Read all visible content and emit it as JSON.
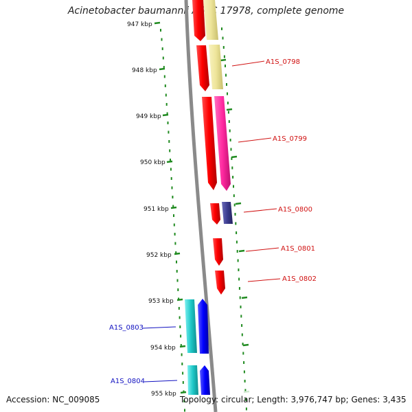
{
  "title": "Acinetobacter baumannii ATCC 17978, complete genome",
  "accession": "Accession: NC_009085",
  "summary": "Topology: circular; Length: 3,976,747 bp; Genes: 3,435",
  "ticks": [
    "947 kbp",
    "948 kbp",
    "949 kbp",
    "950 kbp",
    "951 kbp",
    "952 kbp",
    "953 kbp",
    "954 kbp",
    "955 kbp"
  ],
  "genes": [
    {
      "label": "A1S_0798",
      "color": "#d01010"
    },
    {
      "label": "A1S_0799",
      "color": "#d01010"
    },
    {
      "label": "A1S_0800",
      "color": "#d01010"
    },
    {
      "label": "A1S_0801",
      "color": "#d01010"
    },
    {
      "label": "A1S_0802",
      "color": "#d01010"
    },
    {
      "label": "A1S_0803",
      "color": "#1010c0"
    },
    {
      "label": "A1S_0804",
      "color": "#1010c0"
    }
  ],
  "colors": {
    "backbone": "#8a8a8a",
    "tick": "#1f8a1f",
    "forward_gene": "#ff0000",
    "reverse_gene": "#0000ff",
    "feature_yellow": "#eee59a",
    "feature_pink": "#ff2aa0",
    "feature_navy": "#3b3b8f",
    "feature_cyan": "#1ec8c8"
  }
}
